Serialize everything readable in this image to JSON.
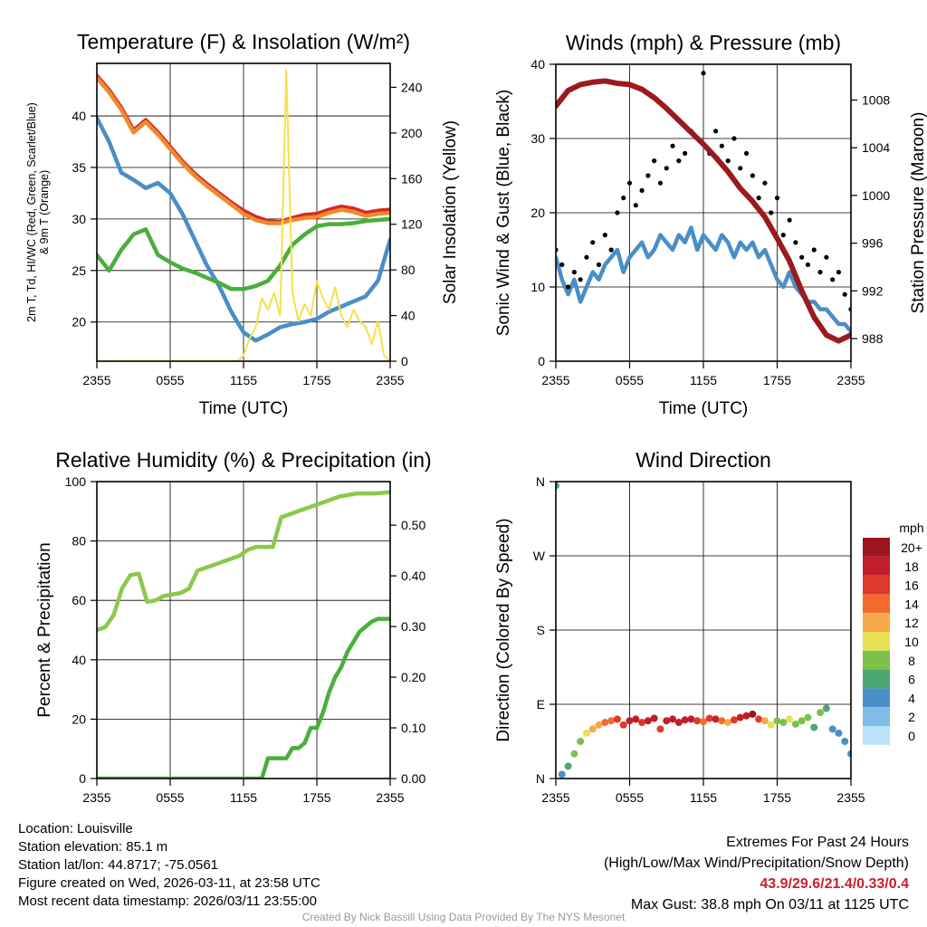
{
  "colors": {
    "temp": "#d42a26",
    "t9m": "#f08a2c",
    "dewpoint": "#4a8ec8",
    "windchill": "#4aae3c",
    "solar": "#f5e04a",
    "wind": "#4a8ec8",
    "gust": "#000000",
    "pressure": "#9b1a1e",
    "rh": "#8cc84a",
    "precip": "#4aae3c"
  },
  "chart_data": [
    {
      "type": "line",
      "title": "Temperature (F) & Insolation (W/m²)",
      "xlabel": "Time (UTC)",
      "ylabel": "2m T, Td, HI/WC (Red, Green, Scarlet/Blue)",
      "ylabel2": "& 9m T (Orange)",
      "ylabel_right": "Solar Insolation (Yellow)",
      "x_ticks": [
        "2355",
        "0555",
        "1155",
        "1755",
        "2355"
      ],
      "x_range_hours": [
        0,
        24
      ],
      "ylim": [
        16.2,
        45.1
      ],
      "y_ticks": [
        20,
        25,
        30,
        35,
        40
      ],
      "ylim_right": [
        0,
        261
      ],
      "y_ticks_right": [
        0,
        40,
        80,
        120,
        160,
        200,
        240
      ],
      "series": [
        {
          "name": "2m T",
          "color_key": "temp",
          "axis": "left",
          "values": [
            43.9,
            42.5,
            40.8,
            38.6,
            39.6,
            38.4,
            37.0,
            35.6,
            34.4,
            33.4,
            32.5,
            31.6,
            30.8,
            30.2,
            29.8,
            29.7,
            30.1,
            30.4,
            30.5,
            30.9,
            31.2,
            31.0,
            30.6,
            30.8,
            30.9
          ]
        },
        {
          "name": "9m T",
          "color_key": "t9m",
          "axis": "left",
          "values": [
            43.7,
            42.3,
            40.6,
            38.4,
            39.4,
            38.2,
            36.8,
            35.4,
            34.2,
            33.2,
            32.3,
            31.4,
            30.5,
            29.9,
            29.6,
            29.6,
            29.9,
            30.1,
            30.2,
            30.6,
            30.9,
            30.7,
            30.3,
            30.5,
            30.6
          ]
        },
        {
          "name": "Td",
          "color_key": "dewpoint",
          "axis": "left",
          "values": [
            39.8,
            37.5,
            34.5,
            33.8,
            33.0,
            33.5,
            32.5,
            30.5,
            28.0,
            25.5,
            23.5,
            21.0,
            19.0,
            18.2,
            18.8,
            19.5,
            19.8,
            20.0,
            20.3,
            21.0,
            21.5,
            22.0,
            22.5,
            24.0,
            28.0
          ]
        },
        {
          "name": "HI/WC",
          "color_key": "windchill",
          "axis": "left",
          "values": [
            26.5,
            25.0,
            27.0,
            28.5,
            29.0,
            26.5,
            25.8,
            25.2,
            24.8,
            24.3,
            23.8,
            23.2,
            23.2,
            23.5,
            24.0,
            25.5,
            27.5,
            28.5,
            29.3,
            29.5,
            29.5,
            29.6,
            29.8,
            29.9,
            30.0
          ]
        },
        {
          "name": "Solar Insolation",
          "color_key": "solar",
          "axis": "right",
          "values": [
            0,
            0,
            0,
            0,
            0,
            0,
            0,
            0,
            0,
            0,
            0,
            0,
            0,
            0,
            0,
            0,
            0,
            0,
            0,
            0,
            0,
            0,
            0,
            0,
            5,
            20,
            30,
            55,
            45,
            60,
            40,
            255,
            60,
            35,
            50,
            40,
            70,
            55,
            45,
            65,
            40,
            30,
            45,
            35,
            30,
            15,
            35,
            5,
            0
          ]
        }
      ]
    },
    {
      "type": "line",
      "title": "Winds (mph) & Pressure (mb)",
      "xlabel": "Time (UTC)",
      "ylabel": "Sonic Wind & Gust (Blue, Black)",
      "ylabel_right": "Station Pressure (Maroon)",
      "x_ticks": [
        "2355",
        "0555",
        "1155",
        "1755",
        "2355"
      ],
      "x_range_hours": [
        0,
        24
      ],
      "ylim": [
        0,
        40
      ],
      "y_ticks": [
        0,
        10,
        20,
        30,
        40
      ],
      "ylim_right": [
        986.1,
        1011.0
      ],
      "y_ticks_right": [
        988,
        992,
        996,
        1000,
        1004,
        1008
      ],
      "series": [
        {
          "name": "Sonic Wind",
          "color_key": "wind",
          "axis": "left",
          "values": [
            14,
            11,
            9,
            11,
            8,
            10,
            12,
            11,
            13,
            14,
            15,
            12,
            14,
            15,
            16,
            14,
            15,
            17,
            16,
            15,
            17,
            16,
            18,
            15,
            17,
            16,
            15,
            17,
            16,
            14,
            16,
            15,
            16,
            14,
            15,
            13,
            11,
            10,
            12,
            10,
            9,
            8,
            8,
            7,
            7,
            6,
            5,
            5,
            4
          ]
        },
        {
          "name": "Gust",
          "color_key": "gust",
          "axis": "left",
          "style": "scatter",
          "values": [
            15,
            13,
            10,
            12,
            11,
            14,
            16,
            13,
            17,
            15,
            20,
            22,
            24,
            21,
            23,
            25,
            27,
            24,
            26,
            29,
            27,
            28,
            31,
            30,
            38.8,
            28,
            31,
            29,
            27,
            30,
            26,
            28,
            25,
            22,
            24,
            20,
            22,
            17,
            19,
            16,
            14,
            13,
            15,
            12,
            14,
            11,
            12,
            9,
            7
          ]
        },
        {
          "name": "Station Pressure",
          "color_key": "pressure",
          "axis": "right",
          "values": [
            1007.5,
            1008.8,
            1009.3,
            1009.5,
            1009.6,
            1009.4,
            1009.3,
            1008.9,
            1008.2,
            1007.3,
            1006.3,
            1005.3,
            1004.3,
            1003.2,
            1002.0,
            1000.6,
            999.5,
            998.2,
            996.4,
            994.5,
            992.0,
            989.8,
            988.3,
            987.8,
            988.3
          ]
        }
      ]
    },
    {
      "type": "line",
      "title": "Relative Humidity (%) & Precipitation (in)",
      "xlabel": "",
      "ylabel": "Percent & Precipitation",
      "x_ticks": [
        "2355",
        "0555",
        "1155",
        "1755",
        "2355"
      ],
      "x_range_hours": [
        0,
        24
      ],
      "ylim": [
        0,
        100
      ],
      "y_ticks": [
        0,
        20,
        40,
        60,
        80,
        100
      ],
      "ylim_right": [
        0,
        0.586
      ],
      "y_ticks_right": [
        "0.00",
        "0.10",
        "0.20",
        "0.30",
        "0.40",
        "0.50"
      ],
      "series": [
        {
          "name": "Relative Humidity",
          "color_key": "rh",
          "axis": "left",
          "values": [
            50,
            51,
            55,
            64,
            68.5,
            69,
            59.5,
            60,
            61.5,
            62,
            62.5,
            64,
            70,
            71,
            72,
            73,
            74,
            75,
            77,
            78,
            78,
            78,
            88,
            89,
            90,
            91,
            92,
            93,
            94,
            95,
            95.5,
            96,
            96,
            96,
            96.2,
            96.5
          ]
        },
        {
          "name": "Precipitation",
          "color_key": "precip",
          "axis": "right",
          "values": [
            0,
            0,
            0,
            0,
            0,
            0,
            0,
            0,
            0,
            0,
            0,
            0,
            0,
            0,
            0,
            0,
            0,
            0,
            0,
            0,
            0,
            0,
            0,
            0,
            0,
            0,
            0,
            0,
            0.04,
            0.04,
            0.04,
            0.04,
            0.06,
            0.06,
            0.07,
            0.1,
            0.1,
            0.13,
            0.17,
            0.2,
            0.22,
            0.25,
            0.27,
            0.29,
            0.3,
            0.31,
            0.315,
            0.315,
            0.315
          ]
        }
      ]
    },
    {
      "type": "scatter",
      "title": "Wind Direction",
      "ylabel": "Direction (Colored By Speed)",
      "x_ticks": [
        "2355",
        "0555",
        "1155",
        "1755",
        "2355"
      ],
      "x_range_hours": [
        0,
        24
      ],
      "ylim": [
        0,
        360
      ],
      "y_ticks": [
        {
          "v": 0,
          "label": "N"
        },
        {
          "v": 90,
          "label": "E"
        },
        {
          "v": 180,
          "label": "S"
        },
        {
          "v": 270,
          "label": "W"
        },
        {
          "v": 360,
          "label": "N"
        }
      ],
      "points_dir_speed": [
        [
          355,
          6
        ],
        [
          5,
          4
        ],
        [
          15,
          6
        ],
        [
          30,
          8
        ],
        [
          45,
          9
        ],
        [
          55,
          10
        ],
        [
          60,
          12
        ],
        [
          65,
          13
        ],
        [
          68,
          14
        ],
        [
          70,
          15
        ],
        [
          72,
          16
        ],
        [
          65,
          17
        ],
        [
          70,
          18
        ],
        [
          72,
          18
        ],
        [
          68,
          17
        ],
        [
          70,
          18
        ],
        [
          73,
          19
        ],
        [
          60,
          17
        ],
        [
          70,
          18
        ],
        [
          72,
          19
        ],
        [
          68,
          18
        ],
        [
          71,
          19
        ],
        [
          72,
          18
        ],
        [
          70,
          16
        ],
        [
          69,
          15
        ],
        [
          73,
          17
        ],
        [
          72,
          18
        ],
        [
          70,
          14
        ],
        [
          68,
          12
        ],
        [
          71,
          16
        ],
        [
          74,
          18
        ],
        [
          76,
          19
        ],
        [
          78,
          20
        ],
        [
          72,
          16
        ],
        [
          70,
          12
        ],
        [
          65,
          10
        ],
        [
          70,
          9
        ],
        [
          68,
          8
        ],
        [
          72,
          10
        ],
        [
          66,
          9
        ],
        [
          70,
          8
        ],
        [
          74,
          9
        ],
        [
          62,
          7
        ],
        [
          80,
          8
        ],
        [
          85,
          7
        ],
        [
          60,
          5
        ],
        [
          55,
          4
        ],
        [
          45,
          4
        ],
        [
          30,
          4
        ]
      ],
      "legend": {
        "title": "mph",
        "bins": [
          {
            "label": "20+",
            "color": "#9b1620"
          },
          {
            "label": "18",
            "color": "#c21e2a"
          },
          {
            "label": "16",
            "color": "#e0382c"
          },
          {
            "label": "14",
            "color": "#f26b2d"
          },
          {
            "label": "12",
            "color": "#f7a84a"
          },
          {
            "label": "10",
            "color": "#e8e055"
          },
          {
            "label": "8",
            "color": "#7cc24a"
          },
          {
            "label": "6",
            "color": "#4aa872"
          },
          {
            "label": "4",
            "color": "#4a8fc8"
          },
          {
            "label": "2",
            "color": "#7fbde6"
          },
          {
            "label": "0",
            "color": "#b8e3f8"
          }
        ]
      }
    }
  ],
  "info": {
    "location": "Location: Louisville",
    "elevation": "Station elevation: 85.1 m",
    "latlon": "Station lat/lon: 44.8717; -75.0561",
    "created": "Figure created on Wed, 2026-03-11, at 23:58 UTC",
    "recent": "Most recent data timestamp: 2026/03/11 23:55:00"
  },
  "extremes": {
    "title": "Extremes For Past 24 Hours",
    "subtitle": "(High/Low/Max Wind/Precipitation/Snow Depth)",
    "values": "43.9/29.6/21.4/0.33/0.4",
    "max_gust": "Max Gust: 38.8 mph On 03/11 at 1125 UTC"
  },
  "credit": "Created By Nick Bassill Using Data Provided By The NYS Mesonet"
}
